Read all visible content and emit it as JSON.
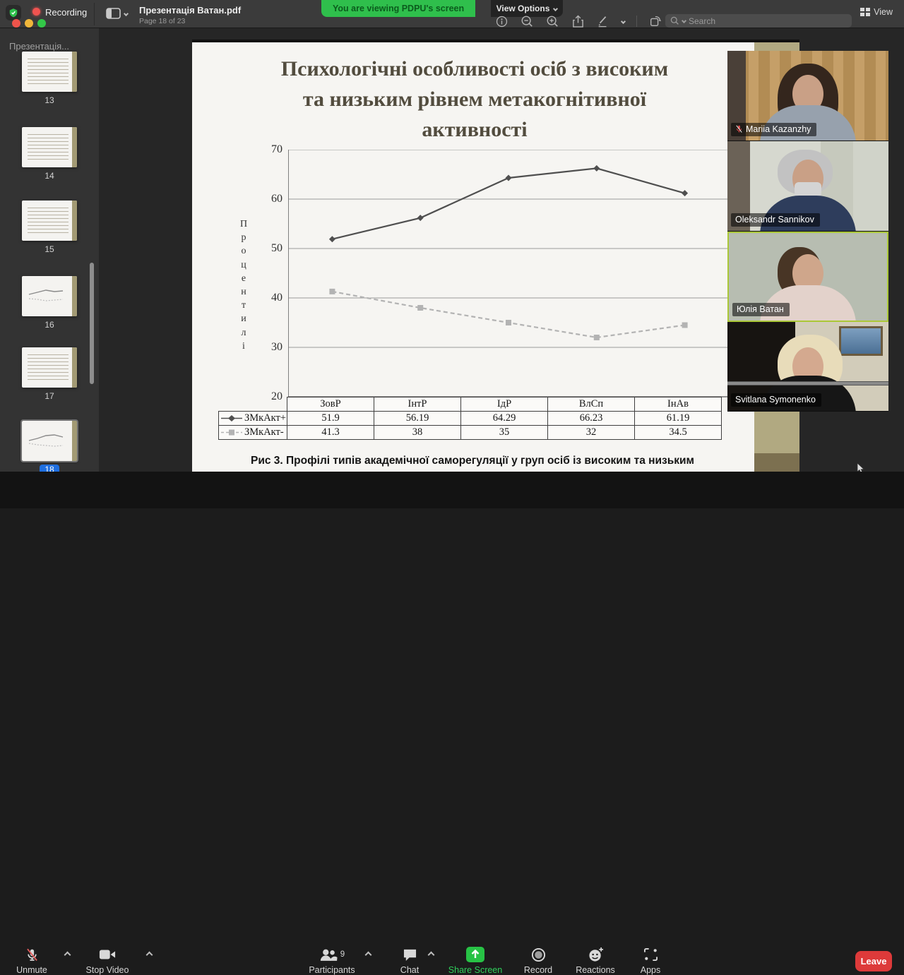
{
  "titlebar": {
    "doc_title": "Презентація Ватан.pdf",
    "page_info": "Page 18 of 23",
    "search_placeholder": "Search",
    "view_label": "View"
  },
  "overlay": {
    "recording_label": "Recording",
    "share_banner": "You are viewing PDPU's screen",
    "view_options_label": "View Options"
  },
  "sidebar": {
    "header": "Презентація...",
    "thumbnails": [
      {
        "num": "13",
        "kind": "text"
      },
      {
        "num": "14",
        "kind": "text"
      },
      {
        "num": "15",
        "kind": "text"
      },
      {
        "num": "16",
        "kind": "chart"
      },
      {
        "num": "17",
        "kind": "text"
      },
      {
        "num": "18",
        "kind": "chart",
        "selected": true
      }
    ]
  },
  "slide": {
    "title_lines": {
      "0": "Психологічні особливості осіб з високим",
      "1": "та низьким рівнем метакогнітивної",
      "2": "активності"
    },
    "caption": "Рис 3. Профілі типів академічної саморегуляції у груп осіб із високим та низьким"
  },
  "chart_data": {
    "type": "line",
    "categories": [
      "ЗовР",
      "ІнтР",
      "ІдР",
      "ВлСп",
      "ІнАв"
    ],
    "series": [
      {
        "name": "ЗМкАкт+",
        "values": [
          51.9,
          56.19,
          64.29,
          66.23,
          61.19
        ],
        "line": "solid",
        "marker": "diamond",
        "color": "#4f4f4f"
      },
      {
        "name": "ЗМкАкт-",
        "values": [
          41.3,
          38,
          35,
          32,
          34.5
        ],
        "line": "dashed",
        "marker": "square",
        "color": "#b3b3b3"
      }
    ],
    "ylabel": "Процентилі",
    "xlabel": "",
    "ylim": [
      20,
      70
    ],
    "yticks": [
      70,
      60,
      50,
      40,
      30,
      20
    ],
    "grid": true,
    "legend_position": "table-left"
  },
  "participants": [
    {
      "name": "Mariia Kazanzhy",
      "muted": true
    },
    {
      "name": "Oleksandr Sannikov",
      "muted": false
    },
    {
      "name": "Юлія Ватан",
      "muted": false,
      "active_speaker": true
    },
    {
      "name": "Svitlana Symonenko",
      "muted": false
    }
  ],
  "controls": {
    "unmute": "Unmute",
    "stop_video": "Stop Video",
    "participants": "Participants",
    "participants_count": "9",
    "chat": "Chat",
    "share_screen": "Share Screen",
    "record": "Record",
    "reactions": "Reactions",
    "apps": "Apps",
    "leave": "Leave"
  },
  "colors": {
    "share_banner_green": "#2fbf4c",
    "share_screen_green": "#27c245",
    "leave_red": "#dd3a3a",
    "active_speaker_border": "#abc838",
    "record_red": "#ef5350",
    "selected_page_blue": "#1f6fe0"
  }
}
